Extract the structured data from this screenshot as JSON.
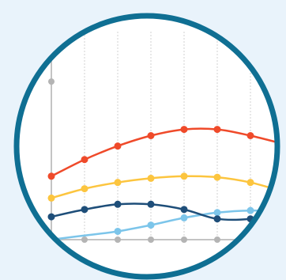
{
  "chart_data": {
    "type": "line",
    "title": "",
    "xlabel": "",
    "ylabel": "",
    "x": [
      0,
      1,
      2,
      3,
      4,
      5,
      6,
      7
    ],
    "xlim": [
      0,
      6.5
    ],
    "ylim": [
      0,
      10
    ],
    "grid": true,
    "legend": "none",
    "y_axis_ticks": [
      7.6,
      8.8
    ],
    "x_axis_ticks": [
      1,
      2,
      3,
      4,
      5,
      6
    ],
    "series": [
      {
        "color": "#ef4a2a",
        "values": [
          3.05,
          3.85,
          4.5,
          5.0,
          5.3,
          5.3,
          5.0,
          4.6
        ],
        "markers": [
          0,
          1,
          2,
          3,
          4,
          5,
          6
        ]
      },
      {
        "color": "#fcc53f",
        "values": [
          2.0,
          2.45,
          2.75,
          2.95,
          3.05,
          3.0,
          2.75,
          2.3
        ],
        "markers": [
          0,
          1,
          2,
          3,
          4,
          5,
          6
        ]
      },
      {
        "color": "#1e4e79",
        "values": [
          1.1,
          1.45,
          1.7,
          1.7,
          1.45,
          1.0,
          1.0,
          1.3
        ],
        "markers": [
          0,
          1,
          2,
          3,
          4,
          5,
          6
        ]
      },
      {
        "color": "#7cc5ea",
        "values": [
          0,
          0.2,
          0.4,
          0.7,
          1.05,
          1.3,
          1.4,
          1.35
        ],
        "markers": [
          2,
          3,
          4,
          5,
          6
        ]
      }
    ],
    "colors": {
      "background": "#e9f3fb",
      "ring": "#0f6f93",
      "circle_fill": "#ffffff",
      "axis": "#c4c4c4",
      "grid": "#d2d2d2"
    }
  }
}
